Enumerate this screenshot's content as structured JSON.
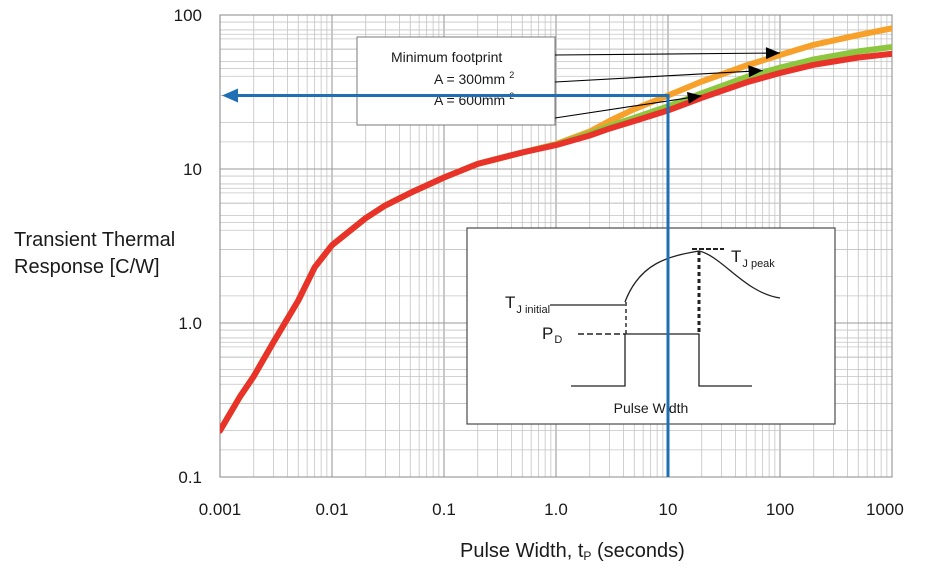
{
  "chart_data": {
    "type": "line",
    "xscale": "log",
    "yscale": "log",
    "xlim": [
      0.001,
      1000
    ],
    "ylim": [
      0.1,
      100
    ],
    "grid": true,
    "xlabel_main": "Pulse Width, t",
    "xlabel_sub": "P",
    "xlabel_tail": " (seconds)",
    "ylabel_line1": "Transient Thermal",
    "ylabel_line2": "Response [C/W]",
    "x_ticks": [
      {
        "value": 0.001,
        "label": "0.001"
      },
      {
        "value": 0.01,
        "label": "0.01"
      },
      {
        "value": 0.1,
        "label": "0.1"
      },
      {
        "value": 1,
        "label": "1.0"
      },
      {
        "value": 10,
        "label": "10"
      },
      {
        "value": 100,
        "label": "100"
      },
      {
        "value": 1000,
        "label": "1000"
      }
    ],
    "y_ticks": [
      {
        "value": 0.1,
        "label": "0.1"
      },
      {
        "value": 1,
        "label": "1.0"
      },
      {
        "value": 10,
        "label": "10"
      },
      {
        "value": 100,
        "label": "100"
      }
    ],
    "series": [
      {
        "name": "Minimum footprint",
        "color": "#f7a12b",
        "x": [
          0.001,
          0.0015,
          0.002,
          0.003,
          0.005,
          0.007,
          0.01,
          0.02,
          0.03,
          0.05,
          0.1,
          0.2,
          0.5,
          1,
          2,
          3,
          5,
          10,
          20,
          50,
          100,
          200,
          500,
          1000
        ],
        "y": [
          0.2,
          0.33,
          0.45,
          0.75,
          1.4,
          2.3,
          3.2,
          4.8,
          5.8,
          7.0,
          8.8,
          10.8,
          12.8,
          14.5,
          17.5,
          20.5,
          24.5,
          30.0,
          37.0,
          47.0,
          55.0,
          64.0,
          74.0,
          82.0
        ]
      },
      {
        "name": "A = 300mm 2",
        "color": "#8dc63f",
        "x": [
          0.001,
          0.0015,
          0.002,
          0.003,
          0.005,
          0.007,
          0.01,
          0.02,
          0.03,
          0.05,
          0.1,
          0.2,
          0.5,
          1,
          2,
          3,
          5,
          10,
          20,
          50,
          100,
          200,
          500,
          1000
        ],
        "y": [
          0.2,
          0.33,
          0.45,
          0.75,
          1.4,
          2.3,
          3.2,
          4.8,
          5.8,
          7.0,
          8.8,
          10.8,
          12.8,
          14.4,
          17.0,
          19.0,
          21.5,
          25.5,
          31.0,
          39.5,
          45.5,
          51.5,
          58.0,
          62.0
        ]
      },
      {
        "name": "A = 600mm 2",
        "color": "#e8322a",
        "x": [
          0.001,
          0.0015,
          0.002,
          0.003,
          0.005,
          0.007,
          0.01,
          0.02,
          0.03,
          0.05,
          0.1,
          0.2,
          0.5,
          1,
          2,
          3,
          5,
          10,
          20,
          50,
          100,
          200,
          500,
          1000
        ],
        "y": [
          0.2,
          0.33,
          0.45,
          0.75,
          1.4,
          2.3,
          3.2,
          4.8,
          5.8,
          7.0,
          8.8,
          10.8,
          12.8,
          14.3,
          16.5,
          18.3,
          20.5,
          24.0,
          29.0,
          36.5,
          42.0,
          47.5,
          53.0,
          56.0
        ]
      }
    ],
    "legend_box": {
      "line1": "Minimum footprint",
      "line2": "A = 300mm",
      "line2_sup": "2",
      "line3": "A = 600mm",
      "line3_sup": "2",
      "arrow_targets": [
        {
          "series": 0,
          "x": 100
        },
        {
          "series": 1,
          "x": 70
        },
        {
          "series": 2,
          "x": 20
        }
      ]
    },
    "reference_lines": {
      "x": 10,
      "y": 30,
      "color": "#1f6fb5"
    },
    "inset": {
      "tj_peak_main": "T",
      "tj_peak_sub": "J peak",
      "tj_initial_main": "T",
      "tj_initial_sub": "J initial",
      "pd_main": "P",
      "pd_sub": "D",
      "caption": "Pulse Width"
    }
  }
}
